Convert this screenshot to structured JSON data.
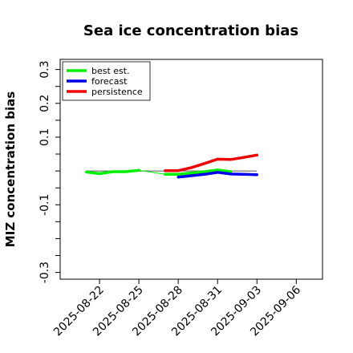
{
  "chart_data": {
    "type": "line",
    "title": "Sea ice concentration bias",
    "ylabel": "MIZ concentration bias",
    "xlabel": "",
    "ylim": [
      -0.32,
      0.33
    ],
    "yticks": [
      {
        "value": 0.3,
        "label": "0.3"
      },
      {
        "value": 0.25,
        "label": ""
      },
      {
        "value": 0.2,
        "label": "0.2"
      },
      {
        "value": 0.15,
        "label": ""
      },
      {
        "value": 0.1,
        "label": "0.1"
      },
      {
        "value": 0.05,
        "label": ""
      },
      {
        "value": 0.0,
        "label": ""
      },
      {
        "value": -0.05,
        "label": ""
      },
      {
        "value": -0.1,
        "label": "-0.1"
      },
      {
        "value": -0.15,
        "label": ""
      },
      {
        "value": -0.2,
        "label": ""
      },
      {
        "value": -0.25,
        "label": ""
      },
      {
        "value": -0.3,
        "label": "-0.3"
      }
    ],
    "xlim": [
      "2025-08-19",
      "2025-09-08"
    ],
    "xticks": [
      {
        "date": "2025-08-22",
        "label": "2025-08-22",
        "color": "#000000"
      },
      {
        "date": "2025-08-25",
        "label": "2025-08-25",
        "color": "#000000"
      },
      {
        "date": "2025-08-28",
        "label": "2025-08-28",
        "color": "#228b22"
      },
      {
        "date": "2025-08-31",
        "label": "2025-08-31",
        "color": "#000000"
      },
      {
        "date": "2025-09-03",
        "label": "2025-09-03",
        "color": "#000000"
      },
      {
        "date": "2025-09-06",
        "label": "2025-09-06",
        "color": "#000000"
      }
    ],
    "zero_line": {
      "y": 0.0,
      "color": "#555555"
    },
    "legend": {
      "placement": "top-left"
    },
    "series": [
      {
        "name": "best est.",
        "color": "#00ee00",
        "segments": [
          {
            "x": [
              "2025-08-21",
              "2025-08-22",
              "2025-08-23",
              "2025-08-24",
              "2025-08-25"
            ],
            "y": [
              -0.003,
              -0.008,
              -0.002,
              -0.002,
              0.002
            ],
            "width": "thick"
          },
          {
            "x": [
              "2025-08-25",
              "2025-08-27"
            ],
            "y": [
              0.002,
              -0.01
            ],
            "width": "thin"
          },
          {
            "x": [
              "2025-08-27",
              "2025-08-28",
              "2025-08-30",
              "2025-08-31",
              "2025-09-01"
            ],
            "y": [
              -0.01,
              -0.01,
              -0.002,
              0.003,
              -0.002
            ],
            "width": "thick"
          }
        ]
      },
      {
        "name": "forecast",
        "color": "#0000ee",
        "segments": [
          {
            "x": [
              "2025-08-28",
              "2025-08-30",
              "2025-08-31",
              "2025-09-01",
              "2025-09-02",
              "2025-09-03"
            ],
            "y": [
              -0.018,
              -0.01,
              -0.004,
              -0.009,
              -0.01,
              -0.011
            ],
            "width": "thick"
          }
        ]
      },
      {
        "name": "persistence",
        "color": "#ee0000",
        "segments": [
          {
            "x": [
              "2025-08-27",
              "2025-08-28",
              "2025-08-29",
              "2025-08-30",
              "2025-08-31",
              "2025-09-01",
              "2025-09-02",
              "2025-09-03"
            ],
            "y": [
              0.001,
              0.001,
              0.01,
              0.022,
              0.035,
              0.034,
              0.04,
              0.047
            ],
            "width": "thick"
          }
        ]
      }
    ]
  }
}
